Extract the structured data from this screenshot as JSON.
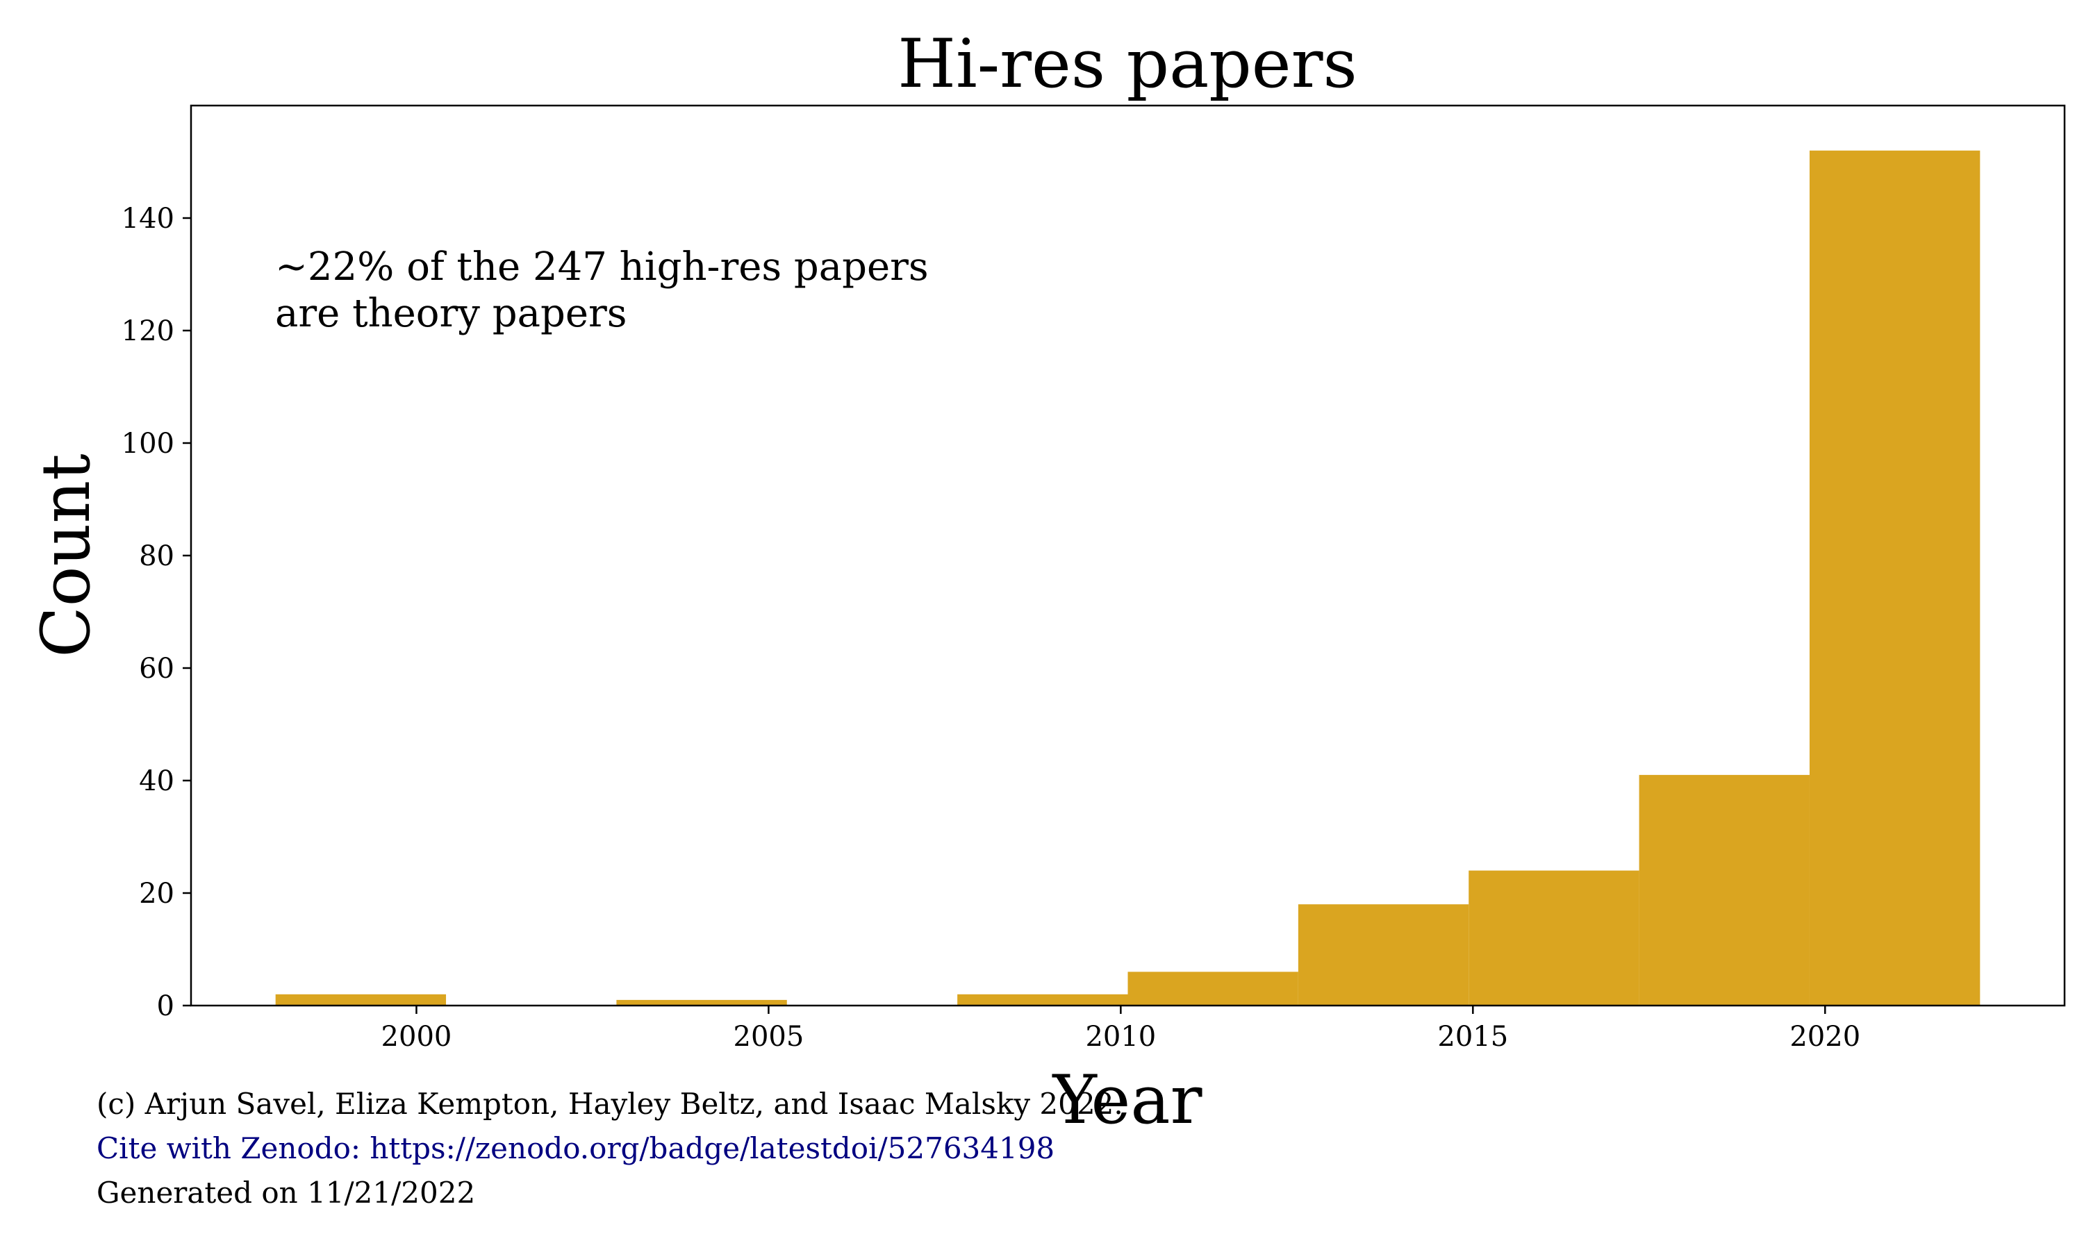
{
  "chart_data": {
    "type": "bar",
    "title": "Hi-res papers",
    "xlabel": "Year",
    "ylabel": "Count",
    "bin_edges": [
      1998.0,
      2000.42,
      2002.84,
      2005.26,
      2007.68,
      2010.1,
      2012.52,
      2014.94,
      2017.36,
      2019.78,
      2022.2
    ],
    "values": [
      2,
      0,
      1,
      0,
      2,
      6,
      18,
      24,
      41,
      152
    ],
    "xlim": [
      1996.8,
      2023.4
    ],
    "ylim": [
      0,
      160
    ],
    "xticks": [
      2000,
      2005,
      2010,
      2015,
      2020
    ],
    "yticks": [
      0,
      20,
      40,
      60,
      80,
      100,
      120,
      140
    ],
    "bar_color": "#DAA520",
    "grid": false,
    "annotation": [
      "~22% of the 247 high-res papers",
      "are theory papers"
    ]
  },
  "footer": {
    "copyright": "(c) Arjun Savel, Eliza Kempton, Hayley Beltz, and Isaac Malsky 2022.",
    "cite": "Cite with Zenodo: https://zenodo.org/badge/latestdoi/527634198",
    "generated": "Generated on 11/21/2022",
    "cite_color": "#000080"
  }
}
